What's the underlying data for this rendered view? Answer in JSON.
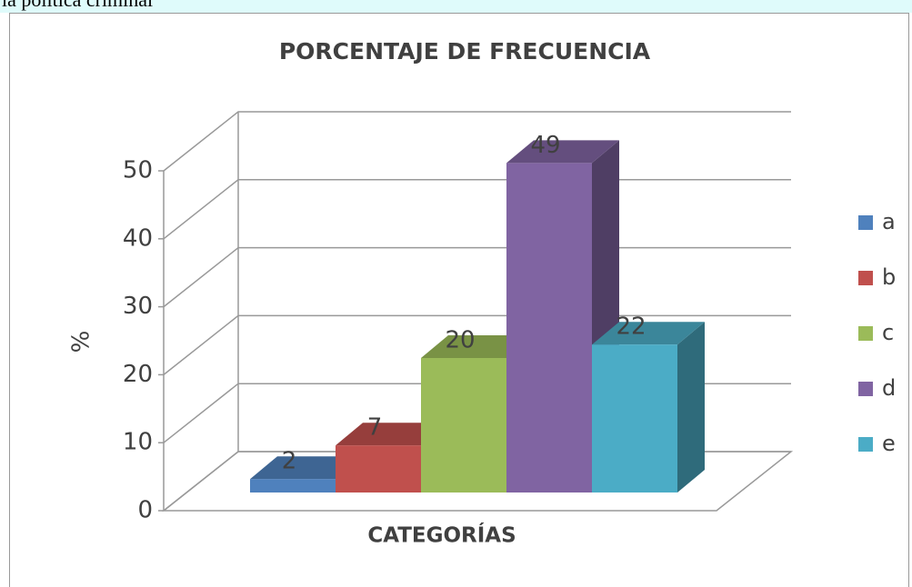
{
  "page_text": "la política criminal",
  "chart_data": {
    "type": "bar3d",
    "title": "PORCENTAJE DE FRECUENCIA",
    "ylabel": "%",
    "xlabel": "CATEGORÍAS",
    "ylim": [
      0,
      50
    ],
    "yticks": [
      0,
      10,
      20,
      30,
      40,
      50
    ],
    "grid": true,
    "legend": "right",
    "series": [
      {
        "name": "a",
        "color": "#4f81bd",
        "values": [
          2
        ]
      },
      {
        "name": "b",
        "color": "#c0504d",
        "values": [
          7
        ]
      },
      {
        "name": "c",
        "color": "#9bbb59",
        "values": [
          20
        ]
      },
      {
        "name": "d",
        "color": "#8064a2",
        "values": [
          49
        ]
      },
      {
        "name": "e",
        "color": "#4bacc6",
        "values": [
          22
        ]
      }
    ]
  }
}
